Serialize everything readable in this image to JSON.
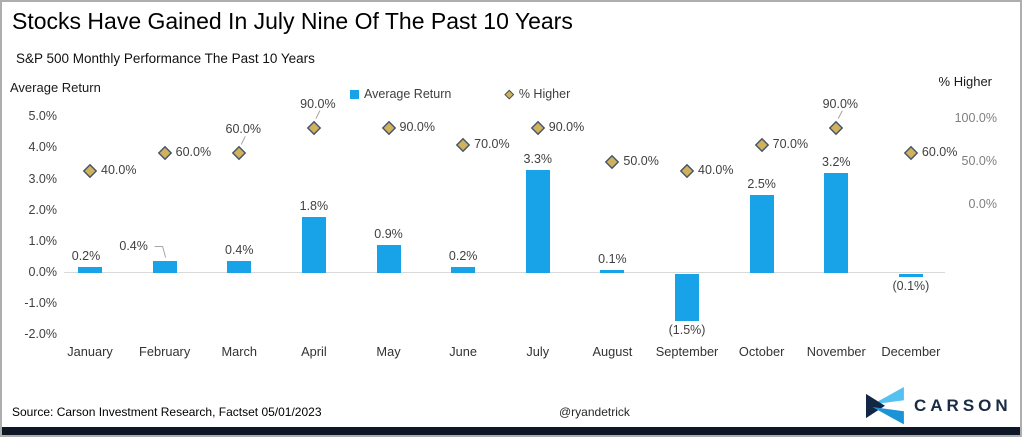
{
  "header": {
    "title": "Stocks Have Gained In July Nine Of The Past 10 Years",
    "subtitle": "S&P 500 Monthly Performance The Past 10 Years"
  },
  "legend": {
    "items": [
      {
        "label": "Average Return",
        "marker": "square",
        "color": "#18a2e8"
      },
      {
        "label": "% Higher",
        "marker": "diamond",
        "color": "#d0b25c"
      }
    ],
    "position": "top-center"
  },
  "chart_data": {
    "type": "bar",
    "categories": [
      "January",
      "February",
      "March",
      "April",
      "May",
      "June",
      "July",
      "August",
      "September",
      "October",
      "November",
      "December"
    ],
    "series": [
      {
        "name": "Average Return",
        "type": "bar",
        "axis": "left",
        "color": "#18a2e8",
        "values": [
          0.2,
          0.4,
          0.4,
          1.8,
          0.9,
          0.2,
          3.3,
          0.1,
          -1.5,
          2.5,
          3.2,
          -0.1
        ],
        "labels": [
          "0.2%",
          "0.4%",
          "0.4%",
          "1.8%",
          "0.9%",
          "0.2%",
          "3.3%",
          "0.1%",
          "(1.5%)",
          "2.5%",
          "3.2%",
          "(0.1%)"
        ],
        "label_pos": [
          "above",
          "above-left-leader",
          "above",
          "above",
          "above",
          "above",
          "above",
          "above",
          "below",
          "above",
          "above",
          "below"
        ]
      },
      {
        "name": "% Higher",
        "type": "scatter-diamond",
        "axis": "right",
        "marker_fill": "#d0b25c",
        "marker_stroke": "#44536b",
        "values": [
          40,
          60,
          60,
          90,
          90,
          70,
          90,
          50,
          40,
          70,
          90,
          60
        ],
        "labels": [
          "40.0%",
          "60.0%",
          "60.0%",
          "90.0%",
          "90.0%",
          "70.0%",
          "90.0%",
          "50.0%",
          "40.0%",
          "70.0%",
          "90.0%",
          "60.0%"
        ],
        "label_pos": [
          "right",
          "right",
          "above-leader",
          "above-leader",
          "right",
          "right",
          "right",
          "right",
          "right",
          "right",
          "above-leader",
          "right"
        ]
      }
    ],
    "left_axis": {
      "title": "Average Return",
      "tick_labels": [
        "5.0%",
        "4.0%",
        "3.0%",
        "2.0%",
        "1.0%",
        "0.0%",
        "-1.0%",
        "-2.0%"
      ],
      "tick_values": [
        5,
        4,
        3,
        2,
        1,
        0,
        -1,
        -2
      ],
      "range": [
        -2,
        5
      ],
      "grid": "zero-line-only"
    },
    "right_axis": {
      "title": "% Higher",
      "tick_labels": [
        "100.0%",
        "50.0%",
        "0.0%"
      ],
      "tick_values": [
        100,
        50,
        0
      ],
      "range": [
        0,
        100
      ]
    }
  },
  "footer": {
    "source": "Source: Carson Investment Research, Factset 05/01/2023",
    "handle": "@ryandetrick",
    "logo_text": "CARSON"
  },
  "colors": {
    "bar_blue": "#18a2e8",
    "diamond_fill": "#d0b25c",
    "diamond_stroke": "#44536b",
    "baseline_gray": "#d9d9d9",
    "strip_navy": "#0d1726",
    "logo_light_blue": "#55c1ef",
    "logo_mid_blue": "#1b93d8",
    "logo_navy": "#122743"
  }
}
